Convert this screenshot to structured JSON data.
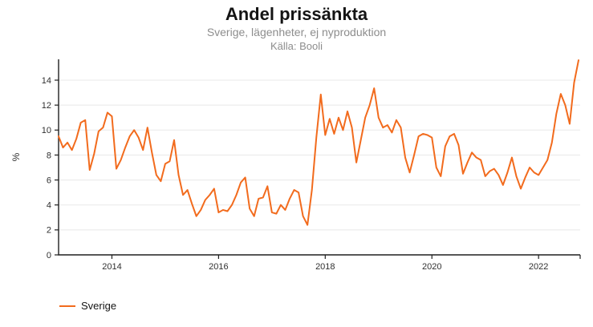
{
  "header": {
    "title": "Andel prissänkta",
    "subtitle": "Sverige, lägenheter, ej nyproduktion",
    "source": "Källa: Booli"
  },
  "legend": {
    "items": [
      {
        "label": "Sverige",
        "color": "#f26b1d"
      }
    ]
  },
  "colors": {
    "line": "#f26b1d",
    "grid": "#e8e8e8",
    "axis": "#1f1f1f",
    "tick_text": "#303030",
    "muted_text": "#8d8d8d"
  },
  "chart_data": {
    "type": "line",
    "title": "Andel prissänkta",
    "subtitle": "Sverige, lägenheter, ej nyproduktion",
    "source": "Källa: Booli",
    "xlabel": "",
    "ylabel": "%",
    "grid": "horizontal",
    "legend_position": "bottom-left",
    "x_ticks": [
      2014,
      2016,
      2018,
      2020,
      2022
    ],
    "y_ticks": [
      0,
      2,
      4,
      6,
      8,
      10,
      12,
      14
    ],
    "xlim": [
      2013.0,
      2022.78
    ],
    "ylim": [
      0,
      15.67
    ],
    "frequency": "monthly",
    "start_period": "2013-01",
    "end_period": "2022-10",
    "series": [
      {
        "name": "Sverige",
        "color": "#f26b1d",
        "values": [
          9.5,
          8.6,
          9.0,
          8.4,
          9.3,
          10.6,
          10.8,
          6.8,
          8.1,
          9.9,
          10.2,
          11.4,
          11.1,
          6.9,
          7.6,
          8.6,
          9.5,
          10.0,
          9.4,
          8.4,
          10.2,
          8.2,
          6.4,
          5.9,
          7.3,
          7.5,
          9.2,
          6.4,
          4.8,
          5.2,
          4.1,
          3.1,
          3.6,
          4.4,
          4.8,
          5.3,
          3.4,
          3.6,
          3.5,
          4.0,
          4.8,
          5.8,
          6.2,
          3.7,
          3.1,
          4.5,
          4.6,
          5.5,
          3.4,
          3.3,
          4.0,
          3.6,
          4.5,
          5.2,
          5.0,
          3.1,
          2.4,
          5.2,
          9.4,
          12.85,
          9.6,
          10.9,
          9.7,
          11.0,
          10.0,
          11.5,
          10.2,
          7.4,
          9.2,
          11.0,
          12.0,
          13.35,
          11.0,
          10.2,
          10.4,
          9.8,
          10.8,
          10.2,
          7.8,
          6.6,
          8.0,
          9.5,
          9.7,
          9.6,
          9.4,
          7.0,
          6.3,
          8.7,
          9.5,
          9.7,
          8.8,
          6.5,
          7.4,
          8.2,
          7.8,
          7.6,
          6.3,
          6.7,
          6.9,
          6.4,
          5.6,
          6.6,
          7.8,
          6.3,
          5.3,
          6.2,
          7.0,
          6.6,
          6.4,
          7.0,
          7.6,
          9.0,
          11.3,
          12.9,
          12.0,
          10.5,
          13.8,
          15.6
        ]
      }
    ]
  }
}
